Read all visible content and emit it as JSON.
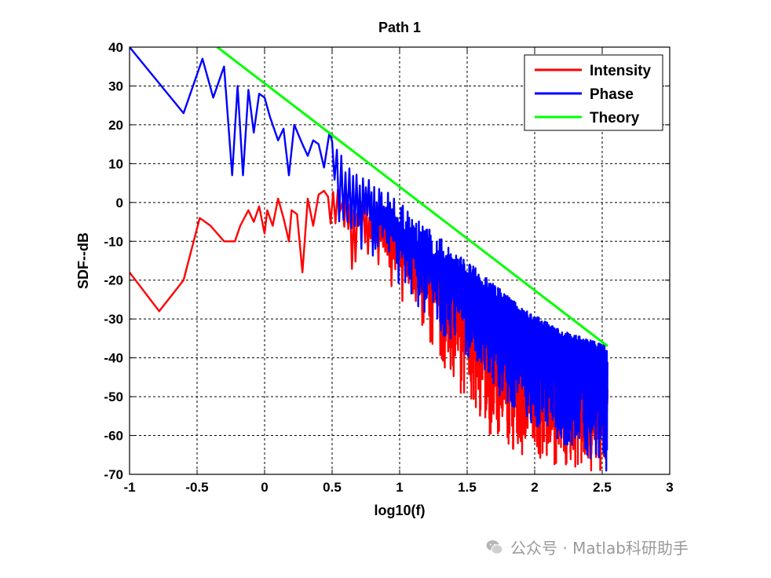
{
  "chart_data": {
    "type": "line",
    "title": "Path 1",
    "xlabel": "log10(f)",
    "ylabel": "SDF--dB",
    "xlim": [
      -1,
      3
    ],
    "ylim": [
      -70,
      40
    ],
    "xticks": [
      "-1",
      "-0.5",
      "0",
      "0.5",
      "1",
      "1.5",
      "2",
      "2.5",
      "3"
    ],
    "yticks": [
      "40",
      "30",
      "20",
      "10",
      "0",
      "-10",
      "-20",
      "-30",
      "-40",
      "-50",
      "-60",
      "-70"
    ],
    "grid": true,
    "legend_position": "top-right",
    "series": [
      {
        "name": "Intensity",
        "color": "#ff0000",
        "x": [
          -1.0,
          -0.78,
          -0.6,
          -0.48,
          -0.4,
          -0.3,
          -0.22,
          -0.18,
          -0.12,
          -0.08,
          -0.04,
          0.0,
          0.02,
          0.06,
          0.1,
          0.14,
          0.18,
          0.2,
          0.24,
          0.28,
          0.32,
          0.36,
          0.4,
          0.44,
          0.47,
          0.5,
          0.52,
          0.55,
          0.58,
          0.6,
          0.63,
          0.66,
          0.7,
          0.75,
          0.8,
          0.85,
          0.9,
          1.0,
          1.1,
          1.2,
          1.3,
          1.4,
          1.5,
          1.6,
          1.7,
          1.8,
          1.9,
          2.0,
          2.1,
          2.2,
          2.3,
          2.4,
          2.5,
          2.54
        ],
        "y": [
          -18,
          -28,
          -20,
          -4,
          -6,
          -10,
          -10,
          -6,
          -2,
          -5,
          -1,
          -8,
          -2,
          -6,
          1,
          -4,
          -10,
          -2,
          -3,
          -18,
          1,
          -6,
          2,
          3,
          0,
          5,
          -6,
          3,
          -5,
          2,
          -6,
          -22,
          0,
          -8,
          -4,
          -5,
          -10,
          -12,
          -15,
          -20,
          -22,
          -25,
          -28,
          -30,
          -33,
          -35,
          -37,
          -40,
          -42,
          -44,
          -46,
          -47,
          -48,
          -48
        ],
        "y_min": [
          -18,
          -28,
          -20,
          -4,
          -6,
          -10,
          -10,
          -6,
          -2,
          -5,
          -1,
          -8,
          -2,
          -6,
          1,
          -4,
          -10,
          -2,
          -3,
          -18,
          1,
          -6,
          2,
          3,
          -9,
          -5,
          -10,
          -3,
          -12,
          -5,
          -14,
          -22,
          -8,
          -16,
          -14,
          -18,
          -22,
          -26,
          -30,
          -36,
          -42,
          -46,
          -52,
          -56,
          -62,
          -64,
          -66,
          -66,
          -67,
          -68,
          -69,
          -70,
          -70,
          -70
        ],
        "y_max": [
          -18,
          -28,
          -20,
          -4,
          -6,
          -10,
          -10,
          -6,
          -2,
          -5,
          -1,
          -8,
          -2,
          -6,
          1,
          -4,
          -10,
          -2,
          -3,
          -18,
          1,
          -6,
          2,
          3,
          5,
          5,
          4,
          4,
          3,
          3,
          2,
          1,
          1,
          0,
          -1,
          -2,
          -3,
          -6,
          -9,
          -12,
          -16,
          -19,
          -22,
          -25,
          -28,
          -31,
          -34,
          -37,
          -40,
          -42,
          -44,
          -46,
          -47,
          -48
        ]
      },
      {
        "name": "Phase",
        "color": "#0000ff",
        "x": [
          -1.0,
          -0.6,
          -0.46,
          -0.38,
          -0.3,
          -0.24,
          -0.2,
          -0.16,
          -0.12,
          -0.08,
          -0.04,
          0.0,
          0.04,
          0.1,
          0.14,
          0.18,
          0.22,
          0.28,
          0.32,
          0.36,
          0.4,
          0.44,
          0.48,
          0.5,
          0.55,
          0.6,
          0.65,
          0.7,
          0.8,
          0.9,
          1.0,
          1.1,
          1.2,
          1.3,
          1.4,
          1.5,
          1.6,
          1.7,
          1.8,
          1.9,
          2.0,
          2.1,
          2.2,
          2.3,
          2.4,
          2.5,
          2.54
        ],
        "y": [
          40,
          23,
          37,
          27,
          35,
          7,
          30,
          7,
          29,
          18,
          28,
          27,
          22,
          16,
          19,
          7,
          20,
          15,
          12,
          16,
          15,
          9,
          18,
          10,
          5,
          4,
          3,
          2,
          -2,
          -5,
          -9,
          -12,
          -15,
          -18,
          -20,
          -23,
          -26,
          -28,
          -30,
          -32,
          -34,
          -36,
          -38,
          -40,
          -42,
          -44,
          -45
        ],
        "y_min": [
          40,
          23,
          37,
          27,
          35,
          7,
          30,
          7,
          29,
          18,
          28,
          27,
          22,
          16,
          19,
          7,
          20,
          15,
          12,
          16,
          15,
          9,
          18,
          10,
          -6,
          -10,
          -12,
          -14,
          -16,
          -18,
          -22,
          -26,
          -30,
          -34,
          -36,
          -40,
          -44,
          -48,
          -52,
          -55,
          -58,
          -60,
          -62,
          -64,
          -66,
          -68,
          -70
        ],
        "y_max": [
          40,
          23,
          37,
          27,
          35,
          7,
          30,
          7,
          29,
          18,
          28,
          27,
          22,
          16,
          19,
          7,
          20,
          15,
          12,
          16,
          15,
          9,
          18,
          16,
          14,
          11,
          9,
          8,
          6,
          3,
          0,
          -3,
          -6,
          -9,
          -12,
          -15,
          -18,
          -21,
          -24,
          -27,
          -29,
          -31,
          -33,
          -34,
          -35,
          -36,
          -37
        ]
      },
      {
        "name": "Theory",
        "color": "#00ff00",
        "x": [
          -0.35,
          2.54
        ],
        "y": [
          40,
          -37
        ]
      }
    ]
  },
  "watermark": {
    "text": "公众号 · Matlab科研助手",
    "icon": "wechat-icon"
  }
}
